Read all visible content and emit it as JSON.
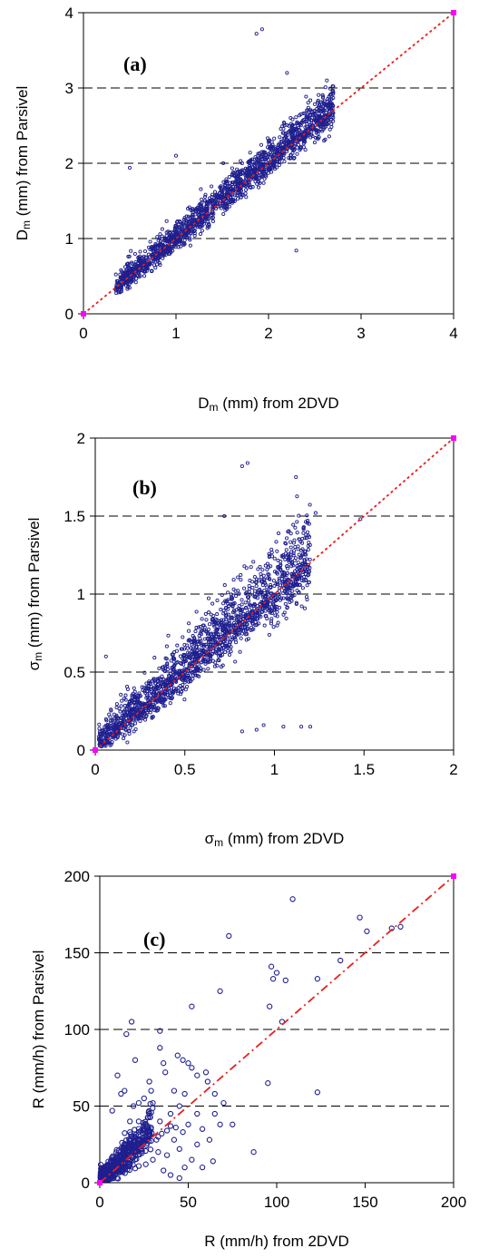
{
  "colors": {
    "points": "#1f1f8f",
    "reference_line": "#e8201c",
    "endpoints": "#ff00ff",
    "gridlines": "#000000"
  },
  "chart_data": [
    {
      "type": "scatter",
      "panel_label": "(a)",
      "xlabel": {
        "sym": "D",
        "sub": "m",
        "rest": " (mm) from 2DVD"
      },
      "ylabel": {
        "sym": "D",
        "sub": "m",
        "rest": " (mm) from Parsivel"
      },
      "xlim": [
        0,
        4
      ],
      "ylim": [
        0,
        4
      ],
      "xticks": [
        0,
        1,
        2,
        3,
        4
      ],
      "yticks": [
        0,
        1,
        2,
        3,
        4
      ],
      "xticklabels": [
        "0",
        "1",
        "2",
        "3",
        "4"
      ],
      "yticklabels": [
        "0",
        "1",
        "2",
        "3",
        "4"
      ],
      "gridlines_y": [
        1,
        2,
        3,
        4
      ],
      "reference_line": [
        [
          0,
          0
        ],
        [
          4,
          4
        ]
      ],
      "scatter_model": {
        "n": 1700,
        "xmin": 0.35,
        "xmax": 2.7,
        "slope": 1.02,
        "intercept": 0.0,
        "noise": 0.09,
        "skew": 1.3,
        "seed": 11
      },
      "outliers": [
        [
          1.87,
          3.72
        ],
        [
          1.93,
          3.78
        ],
        [
          2.63,
          3.1
        ],
        [
          2.7,
          3.02
        ],
        [
          2.3,
          0.84
        ],
        [
          2.6,
          2.3
        ],
        [
          0.5,
          1.94
        ],
        [
          2.2,
          3.2
        ],
        [
          1.0,
          2.1
        ]
      ]
    },
    {
      "type": "scatter",
      "panel_label": "(b)",
      "xlabel": {
        "sym": "σ",
        "sub": "m",
        "rest": " (mm) from 2DVD"
      },
      "ylabel": {
        "sym": "σ",
        "sub": "m",
        "rest": " (mm) from Parsivel"
      },
      "xlim": [
        0,
        2
      ],
      "ylim": [
        0,
        2
      ],
      "xticks": [
        0,
        0.5,
        1,
        1.5,
        2
      ],
      "yticks": [
        0,
        0.5,
        1,
        1.5,
        2
      ],
      "xticklabels": [
        "0",
        "0.5",
        "1",
        "1.5",
        "2"
      ],
      "yticklabels": [
        "0",
        "0.5",
        "1",
        "1.5",
        "2"
      ],
      "gridlines_y": [
        0.5,
        1,
        1.5,
        2
      ],
      "reference_line": [
        [
          0,
          0
        ],
        [
          2,
          2
        ]
      ],
      "scatter_model": {
        "n": 1700,
        "xmin": 0.02,
        "xmax": 1.2,
        "slope": 1.0,
        "intercept": 0.02,
        "noise": 0.07,
        "skew": 1.6,
        "seed": 23
      },
      "outliers": [
        [
          0.82,
          1.82
        ],
        [
          0.85,
          1.84
        ],
        [
          1.12,
          1.75
        ],
        [
          1.23,
          1.52
        ],
        [
          1.48,
          1.48
        ],
        [
          0.82,
          0.12
        ],
        [
          0.94,
          0.16
        ],
        [
          1.05,
          0.15
        ],
        [
          1.15,
          0.15
        ],
        [
          1.2,
          0.15
        ],
        [
          0.9,
          0.13
        ],
        [
          0.06,
          0.6
        ],
        [
          0.3,
          0.44
        ],
        [
          0.72,
          1.5
        ]
      ]
    },
    {
      "type": "scatter",
      "panel_label": "(c)",
      "xlabel": {
        "sym": "R",
        "sub": "",
        "rest": " (mm/h) from 2DVD"
      },
      "ylabel": {
        "sym": "R",
        "sub": "",
        "rest": " (mm/h) from Parsivel"
      },
      "xlim": [
        0,
        200
      ],
      "ylim": [
        0,
        200
      ],
      "xticks": [
        0,
        50,
        100,
        150,
        200
      ],
      "yticks": [
        0,
        50,
        100,
        150,
        200
      ],
      "xticklabels": [
        "0",
        "50",
        "100",
        "150",
        "200"
      ],
      "yticklabels": [
        "0",
        "50",
        "100",
        "150",
        "200"
      ],
      "gridlines_y": [
        50,
        100,
        150
      ],
      "reference_line": [
        [
          0,
          0
        ],
        [
          200,
          200
        ]
      ],
      "scatter_model": {
        "n": 650,
        "xmin": 0.5,
        "xmax": 30,
        "slope": 1.15,
        "intercept": 0.0,
        "noise": 5.0,
        "skew": 1.2,
        "seed": 37,
        "power": 2.2
      },
      "points": [
        [
          109,
          185
        ],
        [
          147,
          173
        ],
        [
          151,
          164
        ],
        [
          165,
          166
        ],
        [
          170,
          167
        ],
        [
          123,
          133
        ],
        [
          136,
          145
        ],
        [
          97,
          141
        ],
        [
          98,
          133
        ],
        [
          100,
          137
        ],
        [
          105,
          132
        ],
        [
          73,
          161
        ],
        [
          68,
          125
        ],
        [
          52,
          115
        ],
        [
          96,
          115
        ],
        [
          103,
          105
        ],
        [
          95,
          65
        ],
        [
          123,
          59
        ],
        [
          87,
          20
        ],
        [
          75,
          38
        ],
        [
          18,
          105
        ],
        [
          15,
          97
        ],
        [
          34,
          99
        ],
        [
          34,
          88
        ],
        [
          36,
          78
        ],
        [
          28,
          66
        ],
        [
          29,
          60
        ],
        [
          37,
          72
        ],
        [
          42,
          60
        ],
        [
          44,
          83
        ],
        [
          47,
          80
        ],
        [
          50,
          78
        ],
        [
          52,
          75
        ],
        [
          55,
          70
        ],
        [
          60,
          72
        ],
        [
          61,
          66
        ],
        [
          65,
          58
        ],
        [
          70,
          52
        ],
        [
          48,
          58
        ],
        [
          45,
          50
        ],
        [
          40,
          45
        ],
        [
          55,
          45
        ],
        [
          58,
          35
        ],
        [
          62,
          28
        ],
        [
          65,
          45
        ],
        [
          64,
          14
        ],
        [
          50,
          38
        ],
        [
          47,
          33
        ],
        [
          40,
          37
        ],
        [
          43,
          36
        ],
        [
          38,
          34
        ],
        [
          35,
          32
        ],
        [
          33,
          30
        ],
        [
          32,
          28
        ],
        [
          45,
          22
        ],
        [
          55,
          25
        ],
        [
          68,
          38
        ],
        [
          10,
          70
        ],
        [
          12,
          58
        ],
        [
          14,
          60
        ],
        [
          19,
          50
        ],
        [
          22,
          52
        ],
        [
          25,
          55
        ],
        [
          7,
          47
        ],
        [
          17,
          40
        ],
        [
          20,
          30
        ],
        [
          26,
          12
        ],
        [
          30,
          15
        ],
        [
          33,
          20
        ],
        [
          36,
          8
        ],
        [
          40,
          5
        ],
        [
          45,
          3
        ],
        [
          28,
          45
        ],
        [
          25,
          35
        ],
        [
          42,
          28
        ],
        [
          38,
          18
        ],
        [
          52,
          15
        ],
        [
          58,
          10
        ],
        [
          48,
          10
        ],
        [
          34,
          40
        ],
        [
          30,
          52
        ],
        [
          20,
          80
        ],
        [
          22,
          40
        ],
        [
          17,
          33
        ]
      ]
    }
  ]
}
